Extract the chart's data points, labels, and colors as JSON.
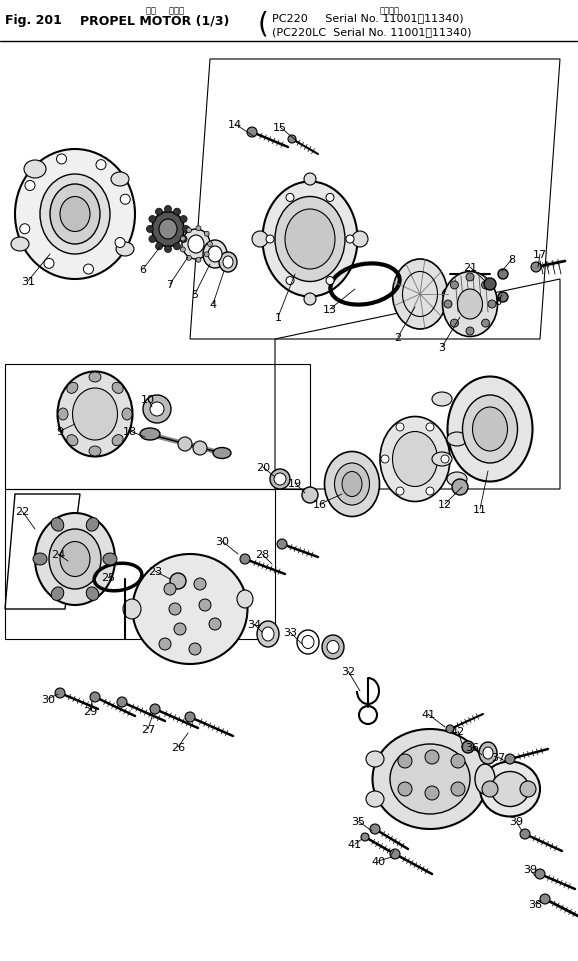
{
  "title_line1": "Fig. 201   PROPEL MOTOR (⅓)",
  "title_jp1": "辺行     モータ",
  "title_jp2": "合用番号",
  "serial_line1": "PC220     Serial No. 11001～11340)",
  "serial_line2": "(PC220LC  Serial No. 11001～11340)",
  "bg_color": "#ffffff",
  "line_color": "#000000",
  "fig_width": 5.78,
  "fig_height": 9.62,
  "dpi": 100
}
